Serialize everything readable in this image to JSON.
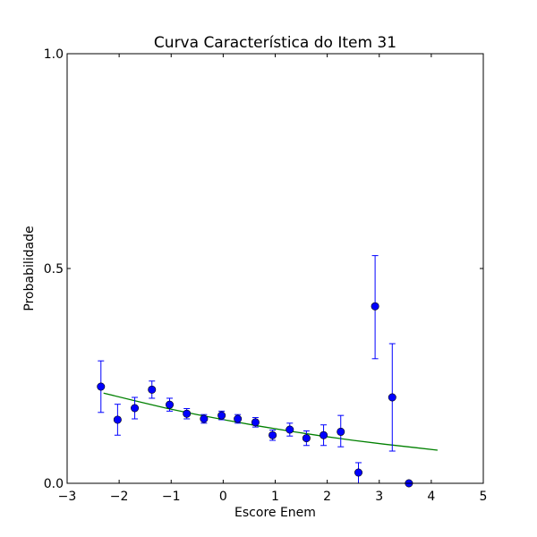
{
  "chart_data": {
    "type": "scatter",
    "title": "Curva Característica do Item 31",
    "xlabel": "Escore Enem",
    "ylabel": "Probabilidade",
    "xlim": [
      -3,
      5
    ],
    "ylim": [
      0.0,
      1.0
    ],
    "xticks": [
      -3,
      -2,
      -1,
      0,
      1,
      2,
      3,
      4,
      5
    ],
    "xtick_labels": [
      "−3",
      "−2",
      "−1",
      "0",
      "1",
      "2",
      "3",
      "4",
      "5"
    ],
    "yticks": [
      0.0,
      0.5,
      1.0
    ],
    "ytick_labels": [
      "0.0",
      "0.5",
      "1.0"
    ],
    "grid": false,
    "series": [
      {
        "kind": "errorbar",
        "color": "#0000ff",
        "points": [
          {
            "x": -2.35,
            "y": 0.225,
            "low": 0.165,
            "high": 0.285
          },
          {
            "x": -2.03,
            "y": 0.148,
            "low": 0.112,
            "high": 0.184
          },
          {
            "x": -1.7,
            "y": 0.175,
            "low": 0.15,
            "high": 0.2
          },
          {
            "x": -1.37,
            "y": 0.218,
            "low": 0.198,
            "high": 0.238
          },
          {
            "x": -1.03,
            "y": 0.183,
            "low": 0.168,
            "high": 0.198
          },
          {
            "x": -0.7,
            "y": 0.162,
            "low": 0.15,
            "high": 0.174
          },
          {
            "x": -0.37,
            "y": 0.15,
            "low": 0.14,
            "high": 0.16
          },
          {
            "x": -0.03,
            "y": 0.158,
            "low": 0.148,
            "high": 0.168
          },
          {
            "x": 0.28,
            "y": 0.15,
            "low": 0.14,
            "high": 0.16
          },
          {
            "x": 0.62,
            "y": 0.142,
            "low": 0.131,
            "high": 0.153
          },
          {
            "x": 0.95,
            "y": 0.112,
            "low": 0.1,
            "high": 0.124
          },
          {
            "x": 1.28,
            "y": 0.125,
            "low": 0.11,
            "high": 0.14
          },
          {
            "x": 1.6,
            "y": 0.105,
            "low": 0.088,
            "high": 0.122
          },
          {
            "x": 1.93,
            "y": 0.112,
            "low": 0.088,
            "high": 0.136
          },
          {
            "x": 2.26,
            "y": 0.12,
            "low": 0.085,
            "high": 0.158
          },
          {
            "x": 2.6,
            "y": 0.025,
            "low": 0.0,
            "high": 0.048
          },
          {
            "x": 2.92,
            "y": 0.412,
            "low": 0.29,
            "high": 0.53
          },
          {
            "x": 3.25,
            "y": 0.2,
            "low": 0.075,
            "high": 0.325
          },
          {
            "x": 3.57,
            "y": 0.0,
            "low": 0.0,
            "high": 0.0
          }
        ]
      },
      {
        "kind": "line",
        "color": "#008000",
        "x": [
          -2.3,
          -1.7,
          -1.1,
          -0.5,
          0.1,
          0.7,
          1.3,
          1.9,
          2.5,
          3.1,
          3.7,
          4.12
        ],
        "y": [
          0.21,
          0.192,
          0.175,
          0.16,
          0.146,
          0.133,
          0.121,
          0.11,
          0.1,
          0.091,
          0.083,
          0.077
        ]
      }
    ]
  }
}
